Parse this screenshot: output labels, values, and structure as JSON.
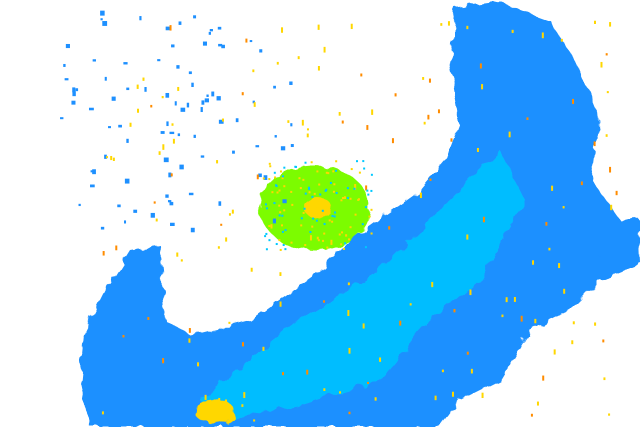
{
  "map": {
    "type": "radar-reflectivity",
    "colors": {
      "background": "#ffffff",
      "weak_echo": "#1e90ff",
      "light_echo": "#00c8ff",
      "moderate_echo": "#7cfc00",
      "strong_echo": "#ffd700",
      "heavy_echo": "#ff8c00"
    }
  }
}
